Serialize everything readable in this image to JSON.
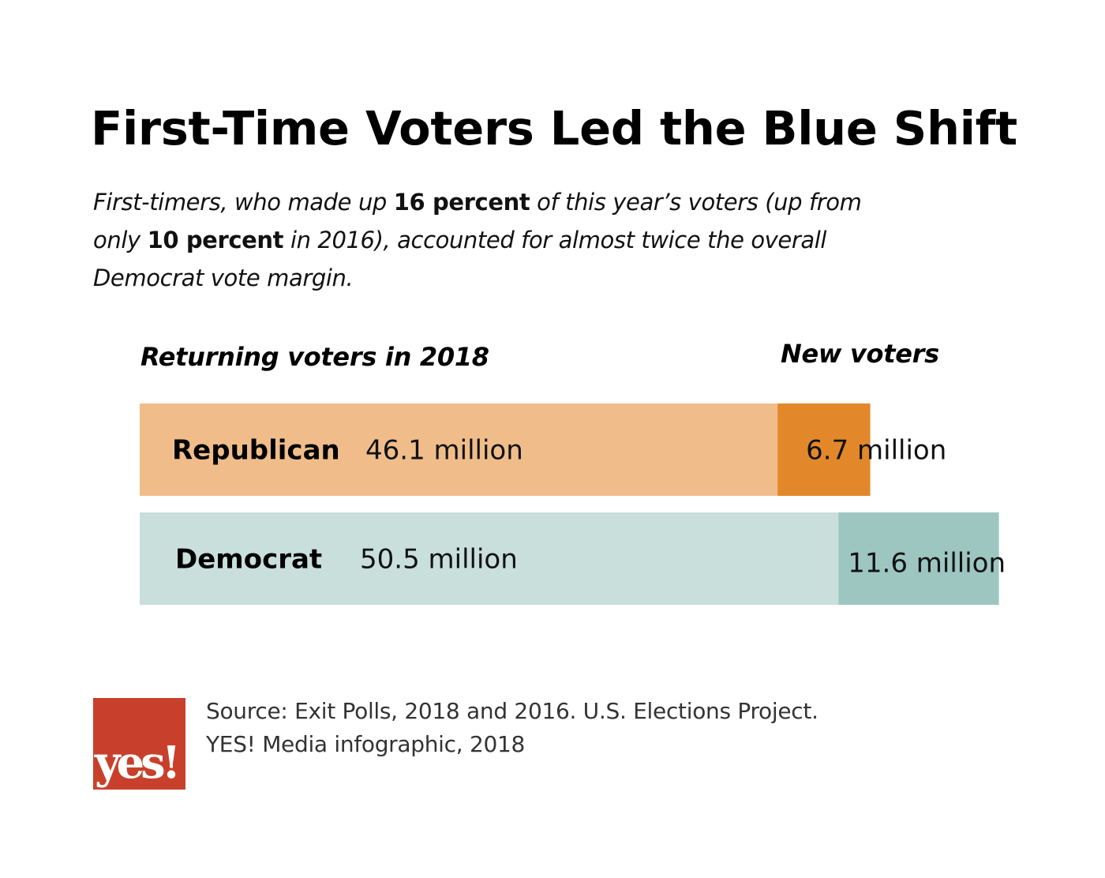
{
  "title": "First-Time Voters Led the Blue Shift",
  "subtitle": {
    "part1": "First-timers, who made up ",
    "bold1": "16 percent",
    "part2": " of this year’s voters (up from only ",
    "bold2": "10 percent",
    "part3": " in 2016), accounted for almost twice the overall Democrat vote margin."
  },
  "chart_data": {
    "type": "bar",
    "orientation": "horizontal",
    "stacked": true,
    "categories": [
      "Republican",
      "Democrat"
    ],
    "series": [
      {
        "name": "Returning voters in 2018",
        "values": [
          46.1,
          50.5
        ],
        "labels": [
          "46.1 million",
          "50.5 million"
        ]
      },
      {
        "name": "New voters",
        "values": [
          6.7,
          11.6
        ],
        "labels": [
          "6.7 million",
          "11.6 million"
        ]
      }
    ],
    "unit": "million",
    "colors": {
      "Republican": {
        "returning": "#f0bd8a",
        "new": "#e2882b"
      },
      "Democrat": {
        "returning": "#c8dfdc",
        "new": "#9dc6c1"
      }
    },
    "xlim": [
      0,
      62.1
    ],
    "grid": false
  },
  "source": {
    "line1": "Source: Exit Polls, 2018 and 2016. U.S. Elections Project.",
    "line2": "YES! Media infographic, 2018"
  },
  "logo": {
    "text": "yes!",
    "color": "#c8402b",
    "icon": "yes-magazine-logo"
  }
}
